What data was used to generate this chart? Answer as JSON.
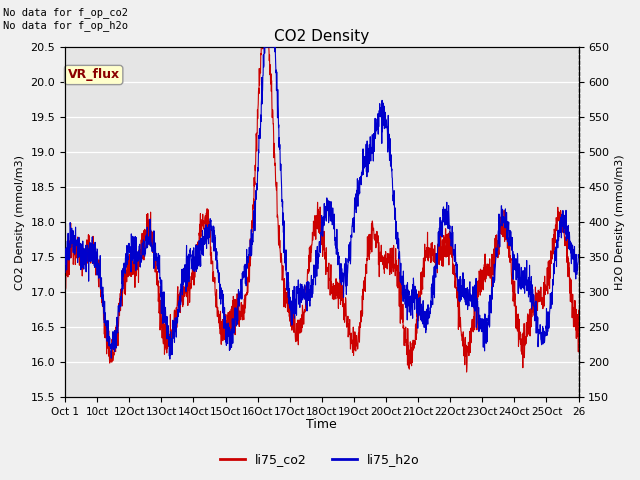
{
  "title": "CO2 Density",
  "xlabel": "Time",
  "ylabel_left": "CO2 Density (mmol/m3)",
  "ylabel_right": "H2O Density (mmol/m3)",
  "top_left_text": "No data for f_op_co2\nNo data for f_op_h2o",
  "legend_box_label": "VR_flux",
  "legend_entries": [
    "li75_co2",
    "li75_h2o"
  ],
  "legend_colors": [
    "#cc0000",
    "#0000cc"
  ],
  "ylim_left": [
    15.5,
    20.5
  ],
  "ylim_right": [
    150,
    650
  ],
  "yticks_left": [
    15.5,
    16.0,
    16.5,
    17.0,
    17.5,
    18.0,
    18.5,
    19.0,
    19.5,
    20.0,
    20.5
  ],
  "yticks_right": [
    150,
    200,
    250,
    300,
    350,
    400,
    450,
    500,
    550,
    600,
    650
  ],
  "xtick_positions": [
    0,
    1,
    2,
    3,
    4,
    5,
    6,
    7,
    8,
    9,
    10,
    11,
    12,
    13,
    14,
    15,
    16
  ],
  "xtick_labels": [
    "Oct 1",
    "10ct",
    "12Oct",
    "13Oct",
    "14Oct",
    "15Oct",
    "16Oct",
    "17Oct",
    "18Oct",
    "19Oct",
    "20Oct",
    "21Oct",
    "22Oct",
    "23Oct",
    "24Oct",
    "25Oct",
    "26"
  ],
  "bg_color": "#e5e5e5",
  "fig_bg": "#f0f0f0",
  "line_color_co2": "#cc0000",
  "line_color_h2o": "#0000cc",
  "grid_color": "#ffffff"
}
